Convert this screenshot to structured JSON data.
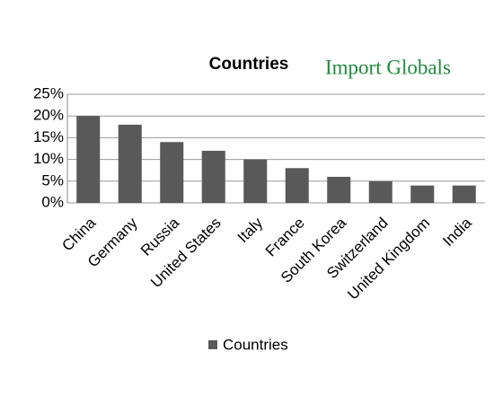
{
  "chart_data": {
    "type": "bar",
    "title": "Countries",
    "logo": "Import Globals",
    "categories": [
      "China",
      "Germany",
      "Russia",
      "United States",
      "Italy",
      "France",
      "South Korea",
      "Switzerland",
      "United Kingdom",
      "India"
    ],
    "series": [
      {
        "name": "Countries",
        "color": "#595959",
        "values": [
          20,
          18,
          14,
          12,
          10,
          8,
          6,
          5,
          4,
          4
        ]
      }
    ],
    "ylim": [
      0,
      25
    ],
    "yticks": [
      {
        "value": 0,
        "label": "0%"
      },
      {
        "value": 5,
        "label": "5%"
      },
      {
        "value": 10,
        "label": "10%"
      },
      {
        "value": 15,
        "label": "15%"
      },
      {
        "value": 20,
        "label": "20%"
      },
      {
        "value": 25,
        "label": "25%"
      }
    ],
    "grid": true,
    "legend": "bottom"
  }
}
